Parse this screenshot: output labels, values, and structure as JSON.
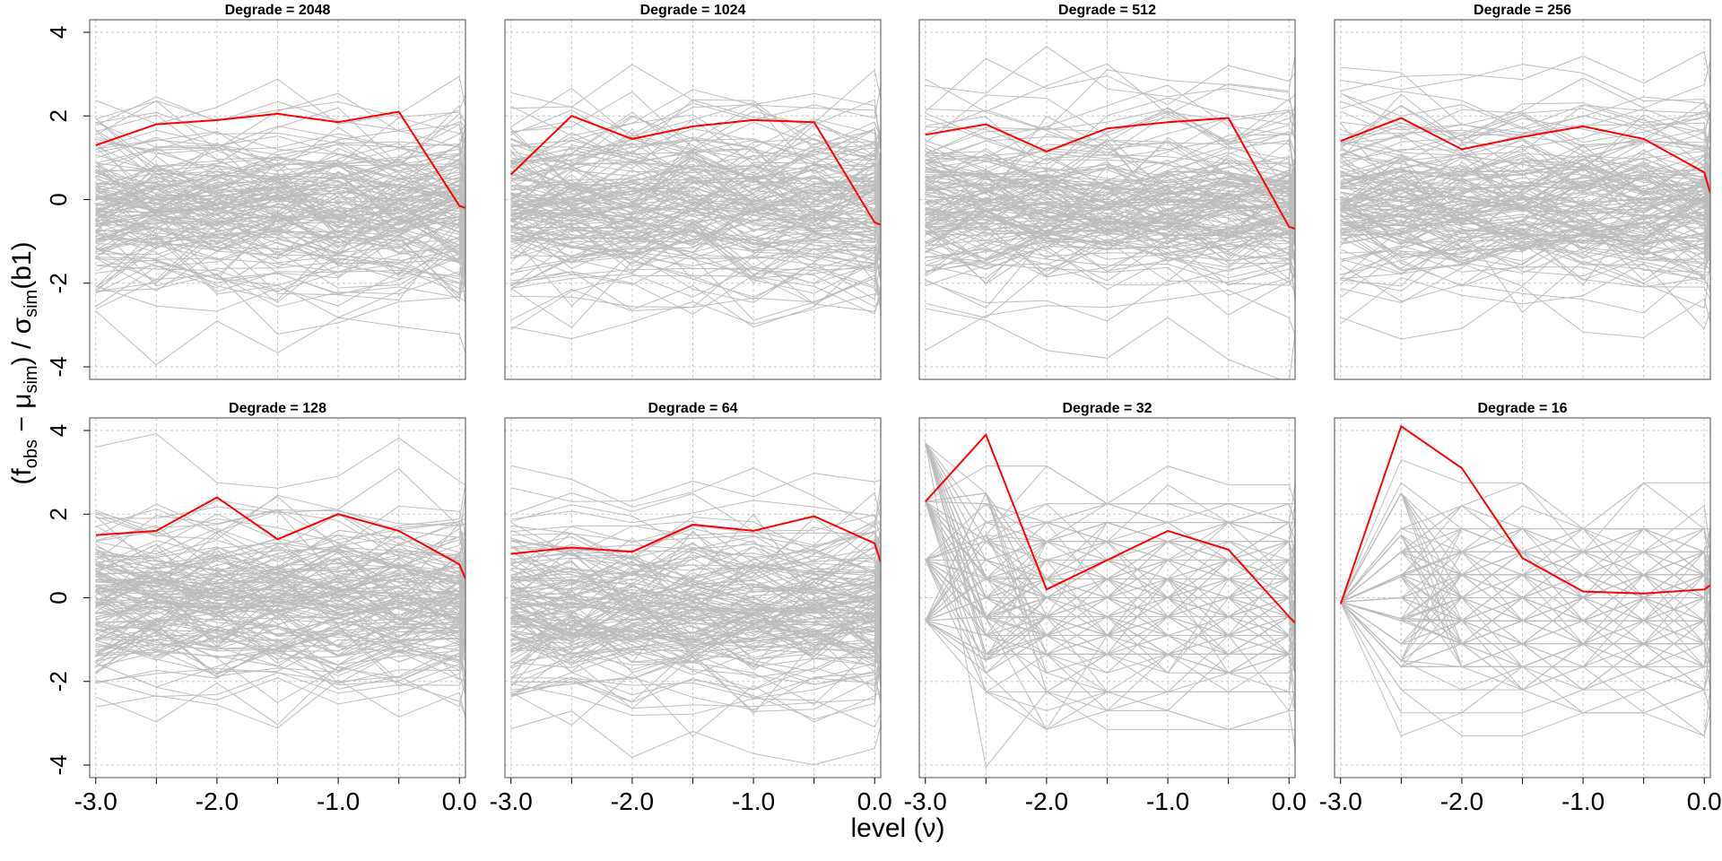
{
  "figure": {
    "ylabel": "(f_obs − μ_sim) / σ_sim(b1)",
    "xlabel": "level (ν)",
    "ylabel_parts": {
      "open": "(f",
      "obs": "obs",
      "minus": " − μ",
      "sim1": "sim",
      "close": ") / σ",
      "sim2": "sim",
      "tail": "(b1)"
    },
    "xlabel_text": "level (ν)"
  },
  "chart_data": {
    "type": "line",
    "panel_layout": "2 rows x 4 columns",
    "x_values": [
      -3.0,
      -2.5,
      -2.0,
      -1.5,
      -1.0,
      -0.5,
      0.0
    ],
    "xlim": [
      -3.05,
      0.05
    ],
    "ylim": [
      -4.3,
      4.3
    ],
    "x_ticks": [
      "-3.0",
      "-2.0",
      "-1.0",
      "0.0"
    ],
    "y_ticks": [
      "-4",
      "-2",
      "0",
      "2",
      "4"
    ],
    "grid": true,
    "observed_color": "#ff0000",
    "simulation_color": "#bdbdbd",
    "simulation_dark_color": "#9e9e9e",
    "panels": [
      {
        "title": "Degrade = 2048",
        "x": [
          -3.0,
          -2.5,
          -2.0,
          -1.5,
          -1.0,
          -0.5,
          0.0,
          0.05
        ],
        "observed": [
          1.3,
          1.8,
          1.9,
          2.05,
          1.85,
          2.1,
          -0.15,
          -0.2
        ],
        "sim_spread": 1.0,
        "sim_discrete": false
      },
      {
        "title": "Degrade = 1024",
        "x": [
          -3.0,
          -2.5,
          -2.0,
          -1.5,
          -1.0,
          -0.5,
          0.0,
          0.05
        ],
        "observed": [
          0.6,
          2.0,
          1.45,
          1.75,
          1.9,
          1.85,
          -0.55,
          -0.6
        ],
        "sim_spread": 1.0,
        "sim_discrete": false
      },
      {
        "title": "Degrade = 512",
        "x": [
          -3.0,
          -2.5,
          -2.0,
          -1.5,
          -1.0,
          -0.5,
          0.0,
          0.05
        ],
        "observed": [
          1.55,
          1.8,
          1.15,
          1.7,
          1.85,
          1.95,
          -0.65,
          -0.7
        ],
        "sim_spread": 1.0,
        "sim_discrete": false
      },
      {
        "title": "Degrade = 256",
        "x": [
          -3.0,
          -2.5,
          -2.0,
          -1.5,
          -1.0,
          -0.5,
          0.0,
          0.05
        ],
        "observed": [
          1.4,
          1.95,
          1.2,
          1.5,
          1.75,
          1.45,
          0.65,
          0.15
        ],
        "sim_spread": 1.0,
        "sim_discrete": false
      },
      {
        "title": "Degrade = 128",
        "x": [
          -3.0,
          -2.5,
          -2.0,
          -1.5,
          -1.0,
          -0.5,
          0.0,
          0.05
        ],
        "observed": [
          1.5,
          1.6,
          2.4,
          1.4,
          2.0,
          1.6,
          0.8,
          0.45
        ],
        "sim_spread": 1.0,
        "sim_discrete": false
      },
      {
        "title": "Degrade = 64",
        "x": [
          -3.0,
          -2.5,
          -2.0,
          -1.5,
          -1.0,
          -0.5,
          0.0,
          0.05
        ],
        "observed": [
          1.05,
          1.2,
          1.1,
          1.75,
          1.6,
          1.95,
          1.3,
          0.85
        ],
        "sim_spread": 1.0,
        "sim_discrete": false
      },
      {
        "title": "Degrade = 32",
        "x": [
          -3.0,
          -2.5,
          -2.0,
          -1.5,
          -1.0,
          -0.5,
          0.0,
          0.05
        ],
        "observed": [
          2.3,
          3.9,
          0.2,
          0.9,
          1.6,
          1.15,
          -0.45,
          -0.6
        ],
        "sim_spread": 0.95,
        "sim_discrete": true
      },
      {
        "title": "Degrade = 16",
        "x": [
          -3.0,
          -2.5,
          -2.0,
          -1.5,
          -1.0,
          -0.5,
          0.0,
          0.05
        ],
        "observed": [
          -0.15,
          4.1,
          3.1,
          0.95,
          0.15,
          0.1,
          0.2,
          0.3
        ],
        "sim_spread": 0.9,
        "sim_discrete": true
      }
    ]
  }
}
